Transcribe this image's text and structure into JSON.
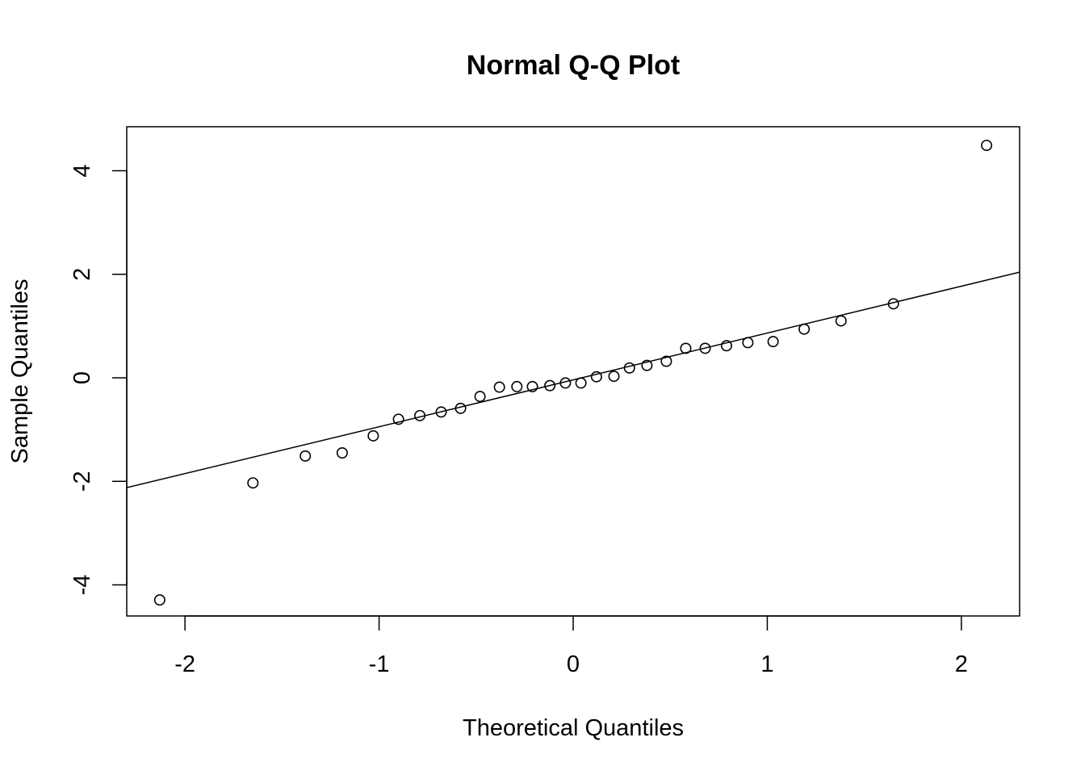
{
  "chart_data": {
    "type": "scatter",
    "title": "Normal Q-Q Plot",
    "xlabel": "Theoretical Quantiles",
    "ylabel": "Sample Quantiles",
    "xlim": [
      -2.3,
      2.3
    ],
    "ylim": [
      -4.6,
      4.85
    ],
    "x_ticks": [
      -2,
      -1,
      0,
      1,
      2
    ],
    "x_tick_labels": [
      "-2",
      "-1",
      "0",
      "1",
      "2"
    ],
    "y_ticks": [
      -4,
      -2,
      0,
      2,
      4
    ],
    "y_tick_labels": [
      "-4",
      "-2",
      "0",
      "2",
      "4"
    ],
    "grid": false,
    "legend": "none",
    "marker": "open-circle",
    "colors": {
      "points": "#000000",
      "line": "#000000",
      "frame": "#000000",
      "background": "#ffffff"
    },
    "points": [
      {
        "x": -2.13,
        "y": -4.29
      },
      {
        "x": -1.65,
        "y": -2.03
      },
      {
        "x": -1.38,
        "y": -1.51
      },
      {
        "x": -1.19,
        "y": -1.45
      },
      {
        "x": -1.03,
        "y": -1.12
      },
      {
        "x": -0.9,
        "y": -0.8
      },
      {
        "x": -0.79,
        "y": -0.73
      },
      {
        "x": -0.68,
        "y": -0.66
      },
      {
        "x": -0.58,
        "y": -0.59
      },
      {
        "x": -0.48,
        "y": -0.36
      },
      {
        "x": -0.38,
        "y": -0.18
      },
      {
        "x": -0.29,
        "y": -0.17
      },
      {
        "x": -0.21,
        "y": -0.17
      },
      {
        "x": -0.12,
        "y": -0.15
      },
      {
        "x": -0.04,
        "y": -0.1
      },
      {
        "x": 0.04,
        "y": -0.1
      },
      {
        "x": 0.12,
        "y": 0.02
      },
      {
        "x": 0.21,
        "y": 0.03
      },
      {
        "x": 0.29,
        "y": 0.19
      },
      {
        "x": 0.38,
        "y": 0.24
      },
      {
        "x": 0.48,
        "y": 0.32
      },
      {
        "x": 0.58,
        "y": 0.57
      },
      {
        "x": 0.68,
        "y": 0.57
      },
      {
        "x": 0.79,
        "y": 0.62
      },
      {
        "x": 0.9,
        "y": 0.68
      },
      {
        "x": 1.03,
        "y": 0.7
      },
      {
        "x": 1.19,
        "y": 0.94
      },
      {
        "x": 1.38,
        "y": 1.1
      },
      {
        "x": 1.65,
        "y": 1.43
      },
      {
        "x": 2.13,
        "y": 4.49
      }
    ],
    "reference_line": {
      "intercept": -0.04,
      "slope": 0.905
    }
  }
}
